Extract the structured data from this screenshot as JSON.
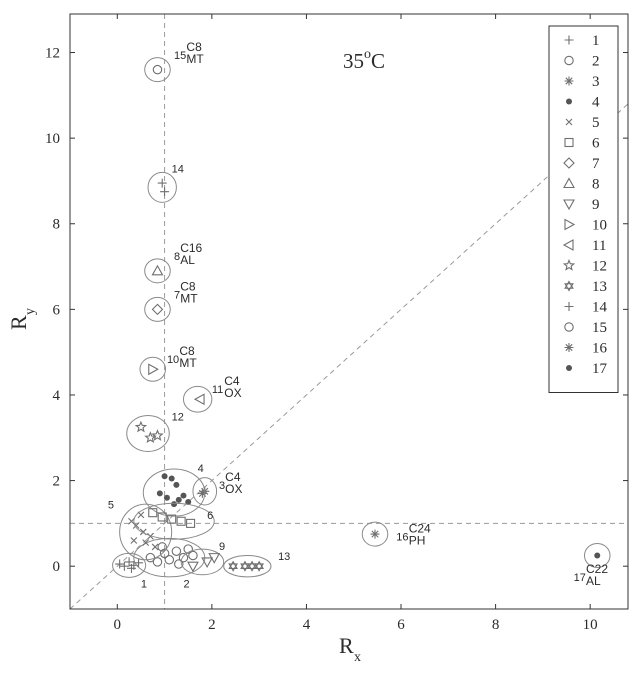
{
  "chart_data": {
    "type": "scatter",
    "title": "",
    "temperature_label": "35",
    "temperature_unit": "oC",
    "xlabel": {
      "main": "R",
      "sub": "x"
    },
    "ylabel": {
      "main": "R",
      "sub": "y"
    },
    "xlim": [
      -1,
      10.8
    ],
    "ylim": [
      -1,
      12.9
    ],
    "xticks": [
      0,
      2,
      4,
      6,
      8,
      10
    ],
    "yticks": [
      0,
      2,
      4,
      6,
      8,
      10,
      12
    ],
    "grid": false,
    "legend_position": "top-right",
    "reference_lines": [
      {
        "type": "vertical",
        "x": 1,
        "style": "dashed"
      },
      {
        "type": "horizontal",
        "y": 1,
        "style": "dashed"
      },
      {
        "type": "diagonal",
        "slope": 1,
        "style": "dashed"
      }
    ],
    "series": [
      {
        "name": "1",
        "marker": "plus",
        "points": [
          [
            0.05,
            0.05
          ],
          [
            0.15,
            0.0
          ],
          [
            0.25,
            0.1
          ],
          [
            0.35,
            0.02
          ],
          [
            0.3,
            -0.05
          ],
          [
            0.45,
            0.08
          ]
        ],
        "ellipse": {
          "cx": 0.25,
          "cy": 0.02,
          "rx": 0.35,
          "ry": 0.28
        }
      },
      {
        "name": "2",
        "marker": "circle",
        "points": [
          [
            0.7,
            0.2
          ],
          [
            0.85,
            0.1
          ],
          [
            1.0,
            0.3
          ],
          [
            1.1,
            0.15
          ],
          [
            1.25,
            0.35
          ],
          [
            1.4,
            0.2
          ],
          [
            1.5,
            0.4
          ],
          [
            1.3,
            0.05
          ],
          [
            0.95,
            0.45
          ],
          [
            1.6,
            0.25
          ]
        ],
        "ellipse": {
          "cx": 1.1,
          "cy": 0.2,
          "rx": 0.75,
          "ry": 0.45
        }
      },
      {
        "name": "3",
        "marker": "asterisk",
        "points": [
          [
            1.85,
            1.75
          ],
          [
            1.8,
            1.7
          ]
        ],
        "ellipse": {
          "cx": 1.85,
          "cy": 1.75,
          "rx": 0.25,
          "ry": 0.32
        }
      },
      {
        "name": "4",
        "marker": "dot",
        "points": [
          [
            1.0,
            2.1
          ],
          [
            1.15,
            2.05
          ],
          [
            1.25,
            1.9
          ],
          [
            1.4,
            1.65
          ],
          [
            1.3,
            1.55
          ],
          [
            1.05,
            1.6
          ],
          [
            0.9,
            1.7
          ],
          [
            1.5,
            1.5
          ],
          [
            1.2,
            1.45
          ]
        ],
        "ellipse": {
          "cx": 1.2,
          "cy": 1.72,
          "rx": 0.65,
          "ry": 0.55
        }
      },
      {
        "name": "5",
        "marker": "cross",
        "points": [
          [
            0.3,
            1.05
          ],
          [
            0.4,
            0.95
          ],
          [
            0.55,
            0.8
          ],
          [
            0.7,
            0.7
          ],
          [
            0.6,
            0.55
          ],
          [
            0.35,
            0.6
          ],
          [
            0.8,
            0.45
          ],
          [
            0.5,
            1.2
          ]
        ],
        "ellipse": {
          "cx": 0.6,
          "cy": 0.8,
          "rx": 0.55,
          "ry": 0.65
        }
      },
      {
        "name": "6",
        "marker": "square",
        "points": [
          [
            0.95,
            1.15
          ],
          [
            1.15,
            1.1
          ],
          [
            1.35,
            1.05
          ],
          [
            1.55,
            1.0
          ],
          [
            0.75,
            1.25
          ]
        ],
        "ellipse": {
          "cx": 1.2,
          "cy": 1.05,
          "rx": 0.85,
          "ry": 0.42
        }
      },
      {
        "name": "7",
        "marker": "diamond",
        "points": [
          [
            0.85,
            6.0
          ]
        ],
        "ellipse": {
          "cx": 0.85,
          "cy": 6.0,
          "rx": 0.27,
          "ry": 0.28
        }
      },
      {
        "name": "8",
        "marker": "triangle-up",
        "points": [
          [
            0.85,
            6.9
          ]
        ],
        "ellipse": {
          "cx": 0.85,
          "cy": 6.9,
          "rx": 0.27,
          "ry": 0.28
        }
      },
      {
        "name": "9",
        "marker": "triangle-down",
        "points": [
          [
            1.6,
            0.0
          ],
          [
            1.9,
            0.1
          ],
          [
            2.05,
            0.2
          ]
        ],
        "ellipse": {
          "cx": 1.8,
          "cy": 0.1,
          "rx": 0.45,
          "ry": 0.3
        }
      },
      {
        "name": "10",
        "marker": "triangle-right",
        "points": [
          [
            0.75,
            4.6
          ]
        ],
        "ellipse": {
          "cx": 0.75,
          "cy": 4.6,
          "rx": 0.27,
          "ry": 0.28
        }
      },
      {
        "name": "11",
        "marker": "triangle-left",
        "points": [
          [
            1.75,
            3.9
          ]
        ],
        "ellipse": {
          "cx": 1.7,
          "cy": 3.9,
          "rx": 0.3,
          "ry": 0.3
        }
      },
      {
        "name": "12",
        "marker": "star",
        "points": [
          [
            0.5,
            3.25
          ],
          [
            0.7,
            3.0
          ],
          [
            0.85,
            3.05
          ]
        ],
        "ellipse": {
          "cx": 0.65,
          "cy": 3.1,
          "rx": 0.45,
          "ry": 0.42
        }
      },
      {
        "name": "13",
        "marker": "hexagram",
        "points": [
          [
            2.45,
            0.0
          ],
          [
            2.7,
            0.0
          ],
          [
            2.85,
            0.0
          ],
          [
            3.0,
            0.0
          ]
        ],
        "ellipse": {
          "cx": 2.75,
          "cy": 0.0,
          "rx": 0.5,
          "ry": 0.25
        }
      },
      {
        "name": "14",
        "marker": "plus",
        "points": [
          [
            0.95,
            8.95
          ],
          [
            1.0,
            8.75
          ]
        ],
        "ellipse": {
          "cx": 0.95,
          "cy": 8.85,
          "rx": 0.3,
          "ry": 0.35
        }
      },
      {
        "name": "15",
        "marker": "circle",
        "points": [
          [
            0.85,
            11.6
          ]
        ],
        "ellipse": {
          "cx": 0.85,
          "cy": 11.6,
          "rx": 0.27,
          "ry": 0.28
        }
      },
      {
        "name": "16",
        "marker": "asterisk",
        "points": [
          [
            5.45,
            0.75
          ]
        ],
        "ellipse": {
          "cx": 5.45,
          "cy": 0.75,
          "rx": 0.27,
          "ry": 0.28
        }
      },
      {
        "name": "17",
        "marker": "dot",
        "points": [
          [
            10.15,
            0.25
          ]
        ],
        "ellipse": {
          "cx": 10.15,
          "cy": 0.25,
          "rx": 0.27,
          "ry": 0.28
        }
      }
    ],
    "annotations": [
      {
        "num": "15",
        "code": "C8",
        "sub": "MT",
        "x": 1.2,
        "y": 11.85
      },
      {
        "num": "14",
        "code": "",
        "sub": "",
        "x": 1.15,
        "y": 9.2
      },
      {
        "num": "8",
        "code": "C16",
        "sub": "AL",
        "x": 1.2,
        "y": 7.15
      },
      {
        "num": "7",
        "code": "C8",
        "sub": "MT",
        "x": 1.2,
        "y": 6.25
      },
      {
        "num": "10",
        "code": "C8",
        "sub": "MT",
        "x": 1.05,
        "y": 4.75
      },
      {
        "num": "11",
        "code": "C4",
        "sub": "OX",
        "x": 2.0,
        "y": 4.05
      },
      {
        "num": "12",
        "code": "",
        "sub": "",
        "x": 1.15,
        "y": 3.4
      },
      {
        "num": "4",
        "code": "",
        "sub": "",
        "x": 1.7,
        "y": 2.2
      },
      {
        "num": "3",
        "code": "C4",
        "sub": "OX",
        "x": 2.15,
        "y": 1.8
      },
      {
        "num": "6",
        "code": "",
        "sub": "",
        "x": 1.9,
        "y": 1.1
      },
      {
        "num": "5",
        "code": "",
        "sub": "",
        "x": -0.2,
        "y": 1.35
      },
      {
        "num": "9",
        "code": "",
        "sub": "",
        "x": 2.15,
        "y": 0.38
      },
      {
        "num": "13",
        "code": "",
        "sub": "",
        "x": 3.4,
        "y": 0.15
      },
      {
        "num": "1",
        "code": "",
        "sub": "",
        "x": 0.5,
        "y": -0.5
      },
      {
        "num": "2",
        "code": "",
        "sub": "",
        "x": 1.4,
        "y": -0.5
      },
      {
        "num": "16",
        "code": "C24",
        "sub": "PH",
        "x": 5.9,
        "y": 0.6
      },
      {
        "num": "17",
        "code": "C22",
        "sub": "AL",
        "x": 9.65,
        "y": -0.35
      }
    ]
  }
}
